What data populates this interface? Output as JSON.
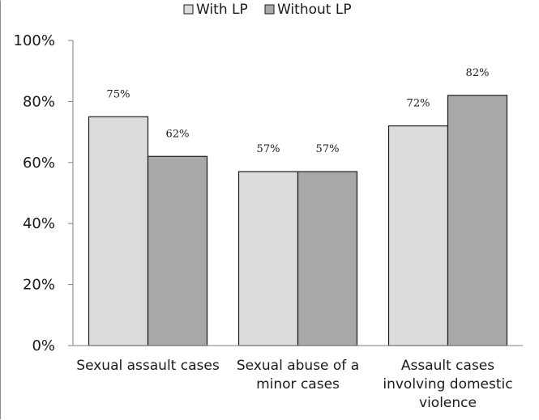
{
  "chart_data": {
    "type": "bar",
    "title": "",
    "xlabel": "",
    "ylabel": "",
    "categories": [
      [
        "Sexual assault cases"
      ],
      [
        "Sexual abuse of a",
        "minor cases"
      ],
      [
        "Assault cases",
        "involving domestic",
        "violence"
      ]
    ],
    "series": [
      {
        "name": "With LP",
        "values": [
          75,
          57,
          72
        ],
        "labels": [
          "75%",
          "57%",
          "72%"
        ],
        "color": "#dcdcdc"
      },
      {
        "name": "Without LP",
        "values": [
          62,
          57,
          82
        ],
        "labels": [
          "62%",
          "57%",
          "82%"
        ],
        "color": "#a9a9a9"
      }
    ],
    "ylim": [
      0,
      100
    ],
    "yticks": [
      "0%",
      "20%",
      "40%",
      "60%",
      "80%",
      "100%"
    ],
    "ytick_values": [
      0,
      20,
      40,
      60,
      80,
      100
    ],
    "grid": false,
    "legend": "top"
  }
}
